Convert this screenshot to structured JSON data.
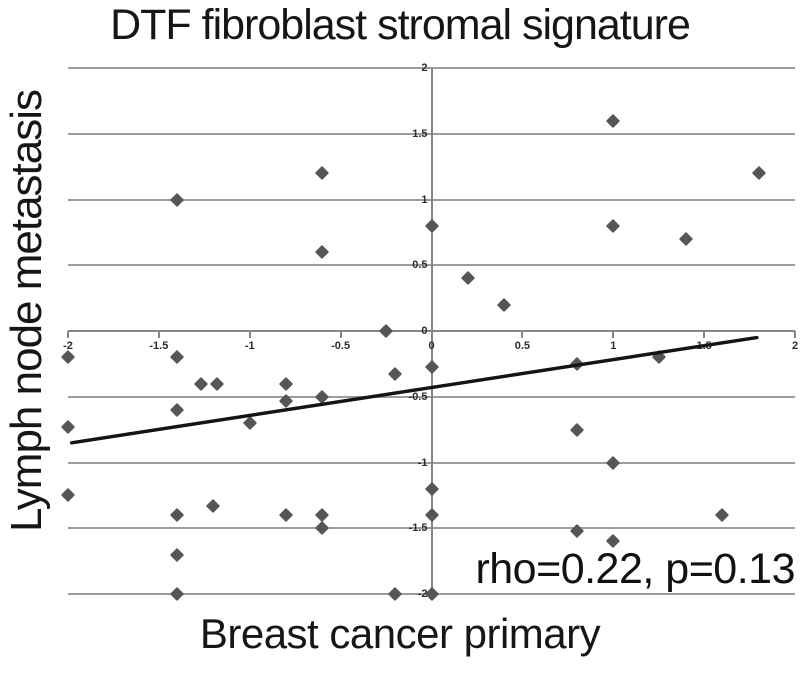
{
  "figure": {
    "title": "DTF fibroblast stromal signature",
    "x_axis_label": "Breast cancer primary",
    "y_axis_label": "Lymph node metastasis",
    "annotation": "rho=0.22, p=0.13"
  },
  "chart_data": {
    "type": "scatter",
    "title": "DTF fibroblast stromal signature",
    "xlabel": "Breast cancer primary",
    "ylabel": "Lymph node metastasis",
    "annotation": "rho=0.22, p=0.13",
    "rho": 0.22,
    "p_value": 0.13,
    "xlim": [
      -2,
      2
    ],
    "ylim": [
      -2,
      2
    ],
    "xticks": [
      -2,
      -1.5,
      -1,
      -0.5,
      0,
      0.5,
      1,
      1.5,
      2
    ],
    "yticks": [
      2,
      1.5,
      1,
      0.5,
      0,
      -0.5,
      -1,
      -1.5,
      -2
    ],
    "grid": "horizontal-only",
    "legend": "none",
    "marker": "diamond",
    "points": [
      [
        -1.4,
        1.0
      ],
      [
        -0.6,
        1.2
      ],
      [
        0,
        0.8
      ],
      [
        -0.6,
        0.6
      ],
      [
        -0.25,
        0
      ],
      [
        1.0,
        1.6
      ],
      [
        1.8,
        1.2
      ],
      [
        1.0,
        0.8
      ],
      [
        1.4,
        0.7
      ],
      [
        0.2,
        0.4
      ],
      [
        0.4,
        0.2
      ],
      [
        -2,
        -0.2
      ],
      [
        -1.4,
        -0.2
      ],
      [
        -1.27,
        -0.4
      ],
      [
        -1.18,
        -0.4
      ],
      [
        -0.8,
        -0.4
      ],
      [
        -0.6,
        -0.5
      ],
      [
        -0.8,
        -0.53
      ],
      [
        -0.2,
        -0.33
      ],
      [
        0,
        -0.27
      ],
      [
        -1.4,
        -0.6
      ],
      [
        -1.0,
        -0.7
      ],
      [
        -2,
        -0.73
      ],
      [
        0.8,
        -0.25
      ],
      [
        1.25,
        -0.2
      ],
      [
        0.8,
        -0.75
      ],
      [
        1.0,
        -1.0
      ],
      [
        -2,
        -1.25
      ],
      [
        -1.2,
        -1.33
      ],
      [
        -1.4,
        -1.4
      ],
      [
        -0.8,
        -1.4
      ],
      [
        -0.6,
        -1.4
      ],
      [
        -0.6,
        -1.5
      ],
      [
        -1.4,
        -1.7
      ],
      [
        0,
        -1.2
      ],
      [
        0,
        -1.4
      ],
      [
        1.6,
        -1.4
      ],
      [
        0.8,
        -1.52
      ],
      [
        1.0,
        -1.6
      ],
      [
        -1.4,
        -2
      ],
      [
        -0.2,
        -2
      ],
      [
        0,
        -2
      ]
    ],
    "trendline": {
      "x1": -1.98,
      "y1": -0.85,
      "x2": 1.79,
      "y2": -0.05
    },
    "colors": {
      "point": "#565656",
      "trend": "#141414",
      "grid": "#9c9c9c",
      "axis": "#868686",
      "text": "#161616",
      "tick_text": "#2e2e2e",
      "background": "#ffffff"
    }
  }
}
